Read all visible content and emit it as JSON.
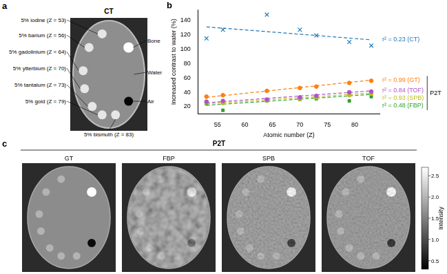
{
  "panel_a": {
    "label": "a",
    "title": "CT",
    "inserts": [
      "5% iodine (Z = 53)",
      "5% barium (Z = 56)",
      "5% gadolinium (Z = 64)",
      "5% ytterbium (Z = 70)",
      "5% tantalum (Z = 73)",
      "5% gold (Z = 79)",
      "5% bismuth (Z = 83)"
    ],
    "references": [
      "Bone",
      "Water",
      "Air"
    ]
  },
  "panel_b": {
    "label": "b",
    "bracket": {
      "label": "P2T",
      "series": [
        "GT",
        "TOF",
        "SPB",
        "FBP"
      ]
    }
  },
  "chart_data": {
    "type": "scatter",
    "x_label": "Atomic number (Z)",
    "y_label": "Increased contrast to water (%)",
    "x": [
      53,
      56,
      64,
      70,
      73,
      79,
      83
    ],
    "xlim": [
      51.5,
      84.5
    ],
    "xticks": [
      55,
      60,
      65,
      70,
      75,
      80
    ],
    "ylim": [
      10,
      155
    ],
    "yticks": [
      20,
      40,
      60,
      80,
      100,
      120,
      140
    ],
    "grid": false,
    "series": [
      {
        "name": "CT",
        "color": "#1f77b4",
        "marker": "x",
        "line_style": "dashed",
        "values": [
          115,
          127,
          148,
          127,
          119,
          110,
          105
        ],
        "trend": {
          "x": [
            53,
            83
          ],
          "y": [
            131,
            113
          ]
        },
        "annotation": "r² = 0.23 (CT)"
      },
      {
        "name": "GT",
        "color": "#ff7f0e",
        "marker": "circle",
        "line_style": "dashed",
        "values": [
          34,
          36,
          42,
          46,
          48,
          53,
          56
        ],
        "trend": {
          "x": [
            53,
            83
          ],
          "y": [
            33,
            57
          ]
        },
        "annotation": "r² = 0.99 (GT)"
      },
      {
        "name": "TOF",
        "color": "#b052c8",
        "marker": "circle",
        "line_style": "dashed",
        "values": [
          27,
          28,
          30,
          33,
          35,
          40,
          41
        ],
        "trend": {
          "x": [
            53,
            83
          ],
          "y": [
            25.5,
            42
          ]
        },
        "annotation": "r² = 0.84 (TOF)"
      },
      {
        "name": "SPB",
        "color": "#bcbd22",
        "marker": "circle",
        "line_style": "dashed",
        "values": [
          26,
          25,
          29,
          31,
          33,
          36,
          38
        ],
        "trend": {
          "x": [
            53,
            83
          ],
          "y": [
            24,
            39
          ]
        },
        "annotation": "r² = 0.93 (SPB)"
      },
      {
        "name": "FBP",
        "color": "#2ca02c",
        "marker": "square",
        "line_style": "dashed",
        "values": [
          24,
          15,
          28,
          30,
          31,
          28,
          34
        ],
        "trend": {
          "x": [
            53,
            83
          ],
          "y": [
            22,
            37
          ]
        },
        "annotation": "r² = 0.48 (FBP)"
      }
    ]
  },
  "panel_c": {
    "label": "c",
    "title": "P2T",
    "images": [
      "GT",
      "FBP",
      "SPB",
      "TOF"
    ],
    "colorbar": {
      "label": "Intensity",
      "range": [
        0.3,
        2.7
      ],
      "ticks": [
        0.5,
        {
          "value": 1,
          "label": "1.0"
        },
        1.5,
        {
          "value": 2,
          "label": "2.0"
        },
        2.5
      ]
    }
  }
}
